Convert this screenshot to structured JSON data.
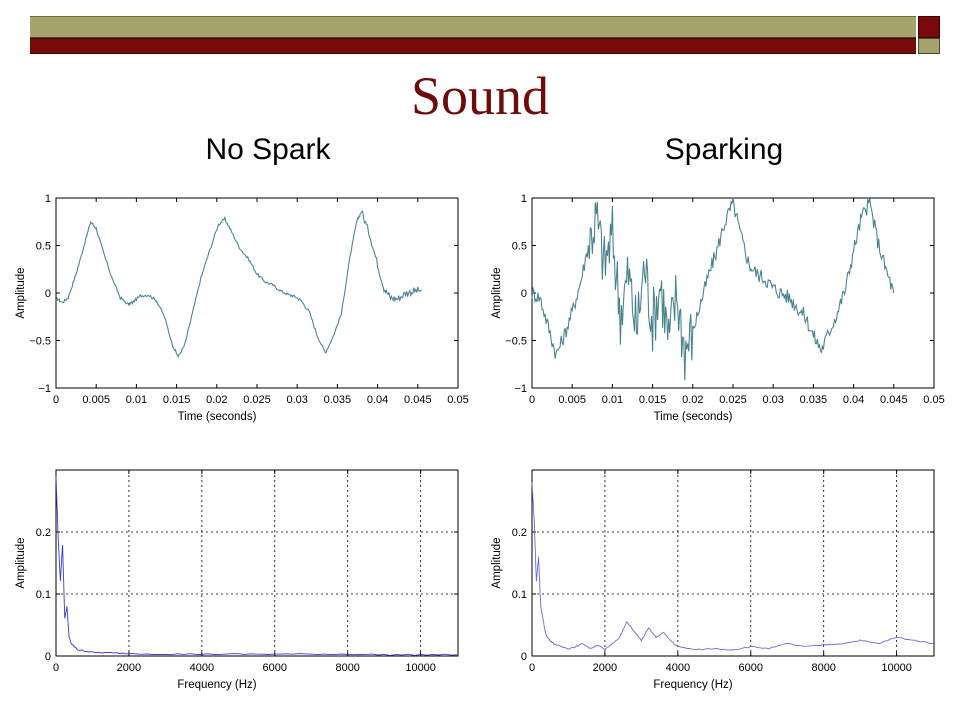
{
  "slide": {
    "title": "Sound",
    "left_label": "No Spark",
    "right_label": "Sparking",
    "colors": {
      "title_bar_olive": "#a6a46c",
      "title_bar_maroon": "#7a0a0a",
      "title_text": "#6e0b0b"
    }
  },
  "chart_data": [
    {
      "id": "time-no-spark",
      "type": "line",
      "title": "",
      "xlabel": "Time (seconds)",
      "ylabel": "Amplitude",
      "xlim": [
        0,
        0.05
      ],
      "ylim": [
        -1,
        1
      ],
      "x_tick_labels": [
        "0",
        "0.005",
        "0.01",
        "0.015",
        "0.02",
        "0.025",
        "0.03",
        "0.035",
        "0.04",
        "0.045",
        "0.05"
      ],
      "y_tick_labels": [
        "1",
        "0.5",
        "0",
        "−0.5",
        "−1"
      ],
      "y_ticks": [
        1,
        0.5,
        0,
        -0.5,
        -1
      ],
      "grid": false,
      "series_colors": [
        "#5a8aa8",
        "#2e7d5a"
      ],
      "series": [
        {
          "x": [
            0,
            0.0008,
            0.0015,
            0.0025,
            0.0035,
            0.0043,
            0.005,
            0.006,
            0.007,
            0.008,
            0.009,
            0.0095,
            0.0105,
            0.0115,
            0.0125,
            0.0135,
            0.0145,
            0.0152,
            0.016,
            0.017,
            0.018,
            0.019,
            0.0202,
            0.021,
            0.0218,
            0.0228,
            0.024,
            0.025,
            0.026,
            0.027,
            0.028,
            0.029,
            0.0298,
            0.0305,
            0.0315,
            0.0325,
            0.0335,
            0.0345,
            0.0355,
            0.0365,
            0.0374,
            0.038,
            0.039,
            0.04,
            0.0408,
            0.0416,
            0.0425,
            0.0435,
            0.0445,
            0.0455
          ],
          "y": [
            -0.05,
            -0.1,
            -0.05,
            0.2,
            0.5,
            0.75,
            0.68,
            0.4,
            0.15,
            -0.05,
            -0.12,
            -0.1,
            -0.03,
            -0.02,
            -0.08,
            -0.25,
            -0.55,
            -0.67,
            -0.55,
            -0.2,
            0.15,
            0.42,
            0.72,
            0.78,
            0.65,
            0.48,
            0.35,
            0.2,
            0.12,
            0.08,
            0.02,
            -0.02,
            -0.04,
            -0.08,
            -0.2,
            -0.45,
            -0.63,
            -0.45,
            -0.22,
            0.35,
            0.75,
            0.86,
            0.62,
            0.3,
            0.05,
            -0.05,
            -0.06,
            0.0,
            0.02,
            0.03
          ]
        }
      ]
    },
    {
      "id": "time-sparking",
      "type": "line",
      "title": "",
      "xlabel": "Time (seconds)",
      "ylabel": "Amplitude",
      "xlim": [
        0,
        0.05
      ],
      "ylim": [
        -1,
        1
      ],
      "x_tick_labels": [
        "0",
        "0.005",
        "0.01",
        "0.015",
        "0.02",
        "0.025",
        "0.03",
        "0.035",
        "0.04",
        "0.045",
        "0.05"
      ],
      "y_tick_labels": [
        "1",
        "0.5",
        "0",
        "−0.5",
        "−1"
      ],
      "y_ticks": [
        1,
        0.5,
        0,
        -0.5,
        -1
      ],
      "grid": false,
      "series_colors": [
        "#5a8aa8",
        "#2e7d5a"
      ],
      "series": [
        {
          "x": [
            0,
            0.001,
            0.002,
            0.003,
            0.004,
            0.005,
            0.006,
            0.007,
            0.008,
            0.009,
            0.01,
            0.011,
            0.012,
            0.013,
            0.014,
            0.015,
            0.016,
            0.017,
            0.018,
            0.019,
            0.02,
            0.021,
            0.022,
            0.023,
            0.024,
            0.025,
            0.026,
            0.027,
            0.028,
            0.029,
            0.03,
            0.031,
            0.032,
            0.033,
            0.034,
            0.035,
            0.036,
            0.037,
            0.038,
            0.039,
            0.04,
            0.041,
            0.042,
            0.043,
            0.044,
            0.045
          ],
          "y": [
            0.0,
            -0.05,
            -0.35,
            -0.65,
            -0.45,
            -0.2,
            0.1,
            0.5,
            0.8,
            0.3,
            0.6,
            -0.2,
            0.2,
            -0.4,
            0.3,
            -0.3,
            0.1,
            -0.5,
            0.0,
            -0.6,
            -0.4,
            -0.1,
            0.2,
            0.45,
            0.75,
            0.95,
            0.6,
            0.3,
            0.2,
            0.15,
            0.05,
            0.0,
            -0.05,
            -0.15,
            -0.25,
            -0.45,
            -0.6,
            -0.4,
            -0.2,
            0.05,
            0.45,
            0.8,
            0.95,
            0.55,
            0.25,
            0.0
          ]
        }
      ]
    },
    {
      "id": "freq-no-spark",
      "type": "line",
      "title": "",
      "xlabel": "Frequency (Hz)",
      "ylabel": "Amplitude",
      "xlim": [
        0,
        11025
      ],
      "ylim": [
        0,
        0.3
      ],
      "x_tick_labels": [
        "0",
        "2000",
        "4000",
        "6000",
        "8000",
        "10000"
      ],
      "x_ticks": [
        0,
        2000,
        4000,
        6000,
        8000,
        10000
      ],
      "y_tick_labels": [
        "0",
        "0.1",
        "0.2"
      ],
      "y_ticks": [
        0,
        0.1,
        0.2
      ],
      "grid": true,
      "series_colors": [
        "#3a3ad6"
      ],
      "series": [
        {
          "x": [
            0,
            60,
            120,
            180,
            240,
            300,
            360,
            420,
            500,
            600,
            800,
            1000,
            1500,
            2000,
            3000,
            4000,
            5000,
            6000,
            7000,
            8000,
            9000,
            10000,
            11000
          ],
          "y": [
            0.29,
            0.19,
            0.12,
            0.18,
            0.06,
            0.08,
            0.03,
            0.02,
            0.015,
            0.01,
            0.008,
            0.006,
            0.005,
            0.004,
            0.003,
            0.003,
            0.003,
            0.003,
            0.003,
            0.003,
            0.002,
            0.002,
            0.002
          ]
        }
      ]
    },
    {
      "id": "freq-sparking",
      "type": "line",
      "title": "",
      "xlabel": "Frequency (Hz)",
      "ylabel": "Amplitude",
      "xlim": [
        0,
        11025
      ],
      "ylim": [
        0,
        0.3
      ],
      "x_tick_labels": [
        "0",
        "2000",
        "4000",
        "6000",
        "8000",
        "10000"
      ],
      "x_ticks": [
        0,
        2000,
        4000,
        6000,
        8000,
        10000
      ],
      "y_tick_labels": [
        "0",
        "0.1",
        "0.2"
      ],
      "y_ticks": [
        0,
        0.1,
        0.2
      ],
      "grid": true,
      "series_colors": [
        "#6a6ae6"
      ],
      "series": [
        {
          "x": [
            0,
            60,
            120,
            180,
            240,
            300,
            360,
            420,
            500,
            600,
            800,
            1000,
            1200,
            1400,
            1600,
            1800,
            2000,
            2200,
            2400,
            2600,
            2800,
            3000,
            3200,
            3400,
            3600,
            3800,
            4000,
            4500,
            5000,
            5500,
            6000,
            6500,
            7000,
            7500,
            8000,
            8500,
            9000,
            9500,
            10000,
            10500,
            11000
          ],
          "y": [
            0.28,
            0.22,
            0.12,
            0.16,
            0.08,
            0.06,
            0.04,
            0.03,
            0.025,
            0.02,
            0.015,
            0.012,
            0.015,
            0.02,
            0.012,
            0.018,
            0.01,
            0.02,
            0.03,
            0.055,
            0.04,
            0.025,
            0.045,
            0.03,
            0.038,
            0.025,
            0.015,
            0.01,
            0.012,
            0.01,
            0.015,
            0.012,
            0.02,
            0.015,
            0.018,
            0.02,
            0.025,
            0.02,
            0.03,
            0.025,
            0.02
          ]
        }
      ]
    }
  ]
}
